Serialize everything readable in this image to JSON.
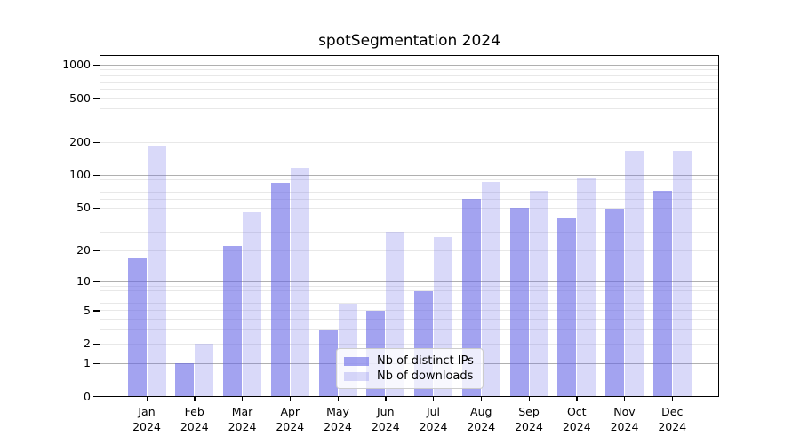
{
  "title": "spotSegmentation 2024",
  "chart_data": {
    "type": "bar",
    "title": "spotSegmentation 2024",
    "categories": [
      "Jan",
      "Feb",
      "Mar",
      "Apr",
      "May",
      "Jun",
      "Jul",
      "Aug",
      "Sep",
      "Oct",
      "Nov",
      "Dec"
    ],
    "x_year_label": "2024",
    "series": [
      {
        "name": "Nb of distinct IPs",
        "key": "ips",
        "values": [
          17,
          1,
          22,
          85,
          3,
          5,
          8,
          61,
          50,
          40,
          49,
          72
        ]
      },
      {
        "name": "Nb of downloads",
        "key": "downloads",
        "values": [
          187,
          2,
          46,
          116,
          6,
          30,
          27,
          87,
          72,
          94,
          166,
          166
        ]
      }
    ],
    "yscale": "log1p",
    "ylim": [
      0,
      1240
    ],
    "y_ticks": [
      0,
      1,
      2,
      5,
      10,
      20,
      50,
      100,
      200,
      500,
      1000
    ],
    "y_minor_gridlines": [
      2,
      3,
      4,
      5,
      6,
      7,
      8,
      9,
      20,
      30,
      40,
      50,
      60,
      70,
      80,
      90,
      200,
      300,
      400,
      500,
      600,
      700,
      800,
      900
    ],
    "y_major_gridlines": [
      1,
      10,
      100,
      1000
    ],
    "grid": true,
    "legend_position": "lower center inside",
    "colors": {
      "base_accent": "#6666e6",
      "ips_fill": "rgba(102,102,230,0.6)",
      "downloads_fill": "rgba(102,102,230,0.25)",
      "major_gridline": "#b0b0b0",
      "minor_gridline": "#e8e8e8",
      "spine": "#000000",
      "legend_border": "#cccccc"
    }
  },
  "legend": {
    "items": [
      {
        "label": "Nb of distinct IPs"
      },
      {
        "label": "Nb of downloads"
      }
    ]
  }
}
